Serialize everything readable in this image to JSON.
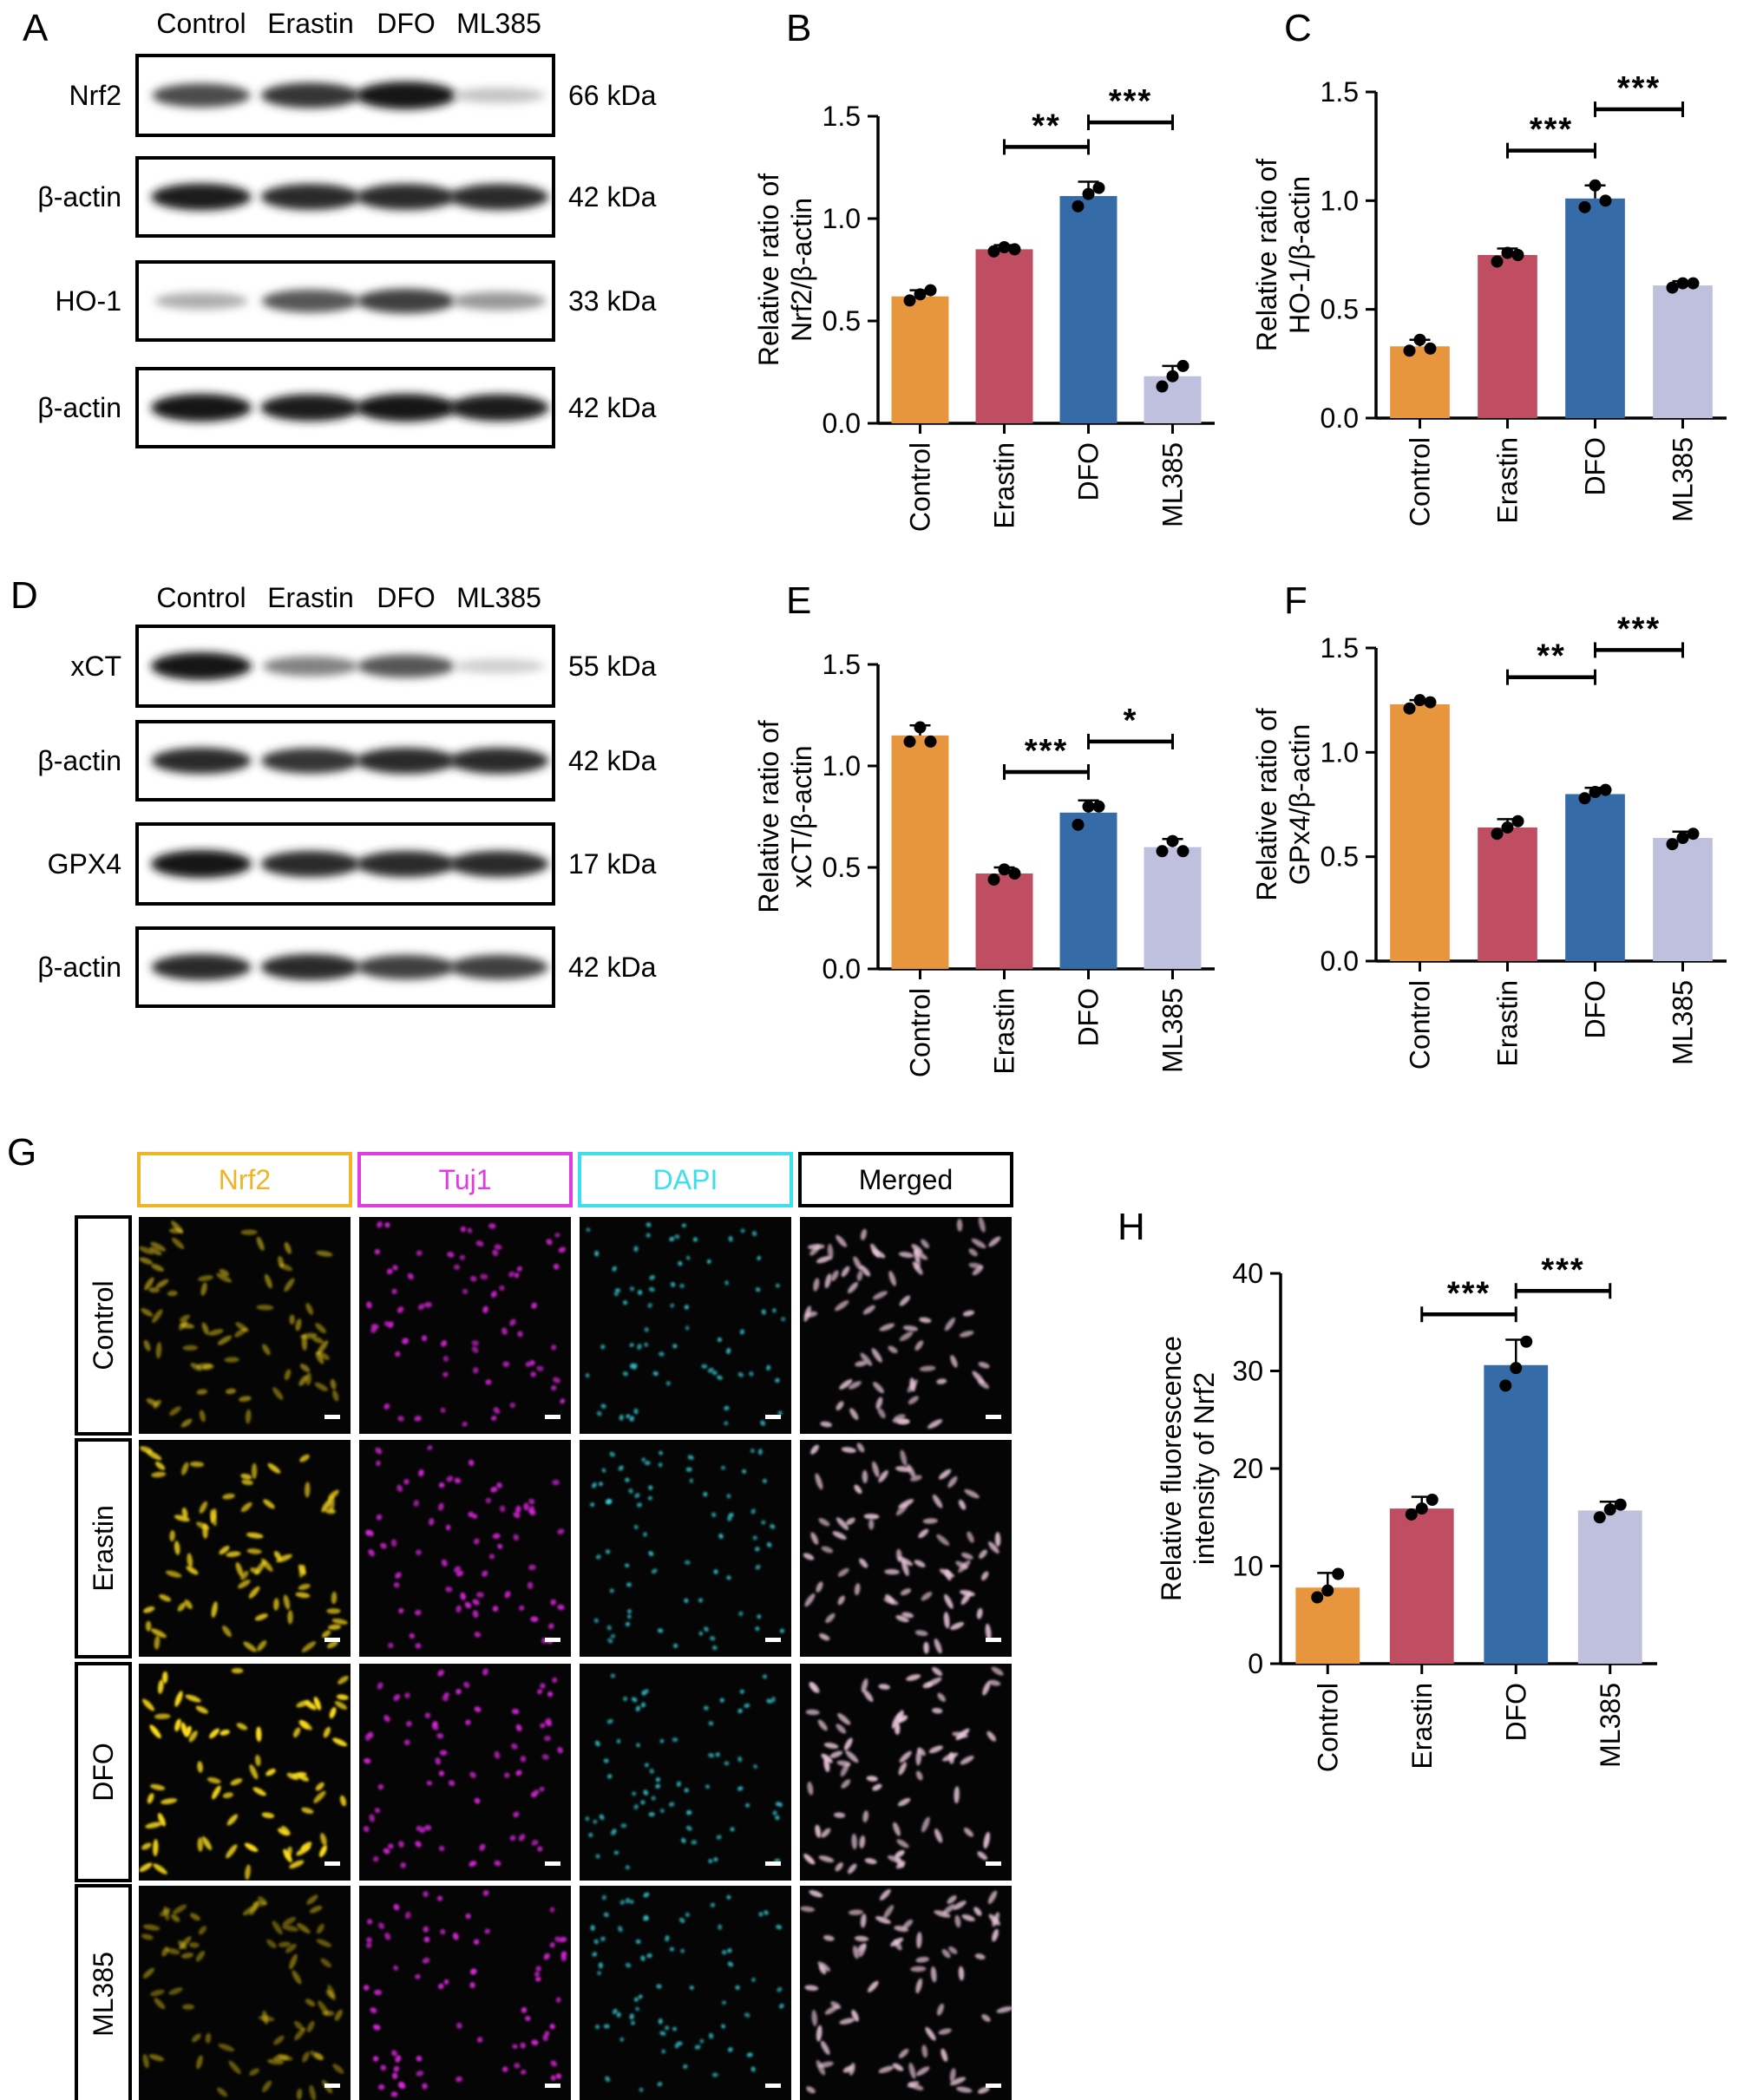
{
  "panel_letters": [
    "A",
    "B",
    "C",
    "D",
    "E",
    "F",
    "G",
    "H"
  ],
  "lane_labels": [
    "Control",
    "Erastin",
    "DFO",
    "ML385"
  ],
  "colors": {
    "Control": "#E8963D",
    "Erastin": "#C04E63",
    "DFO": "#356BA6",
    "ML385": "#BEC0DE",
    "nrf2_frame": "#F0B429",
    "tuj1_frame": "#E03CE0",
    "dapi_frame": "#3CE0EC",
    "merged_frame": "#000000"
  },
  "blots_A": [
    {
      "label": "Nrf2",
      "kda": "66 kDa",
      "intensity": [
        0.75,
        0.85,
        1.0,
        0.2
      ]
    },
    {
      "label": "β-actin",
      "kda": "42 kDa",
      "intensity": [
        0.95,
        0.9,
        0.9,
        0.9
      ]
    },
    {
      "label": "HO-1",
      "kda": "33 kDa",
      "intensity": [
        0.3,
        0.7,
        0.8,
        0.4
      ]
    },
    {
      "label": "β-actin",
      "kda": "42 kDa",
      "intensity": [
        1.0,
        0.95,
        1.0,
        0.95
      ]
    }
  ],
  "blots_D": [
    {
      "label": "xCT",
      "kda": "55 kDa",
      "intensity": [
        1.0,
        0.5,
        0.7,
        0.15
      ]
    },
    {
      "label": "β-actin",
      "kda": "42 kDa",
      "intensity": [
        0.9,
        0.85,
        0.9,
        0.9
      ]
    },
    {
      "label": "GPX4",
      "kda": "17 kDa",
      "intensity": [
        1.0,
        0.9,
        0.9,
        0.9
      ]
    },
    {
      "label": "β-actin",
      "kda": "42 kDa",
      "intensity": [
        0.9,
        0.9,
        0.8,
        0.8
      ]
    }
  ],
  "if_panel": {
    "channels": [
      "Nrf2",
      "Tuj1",
      "DAPI",
      "Merged"
    ],
    "rows": [
      "Control",
      "Erastin",
      "DFO",
      "ML385"
    ],
    "levels": {
      "Nrf2": [
        0.35,
        0.75,
        1.0,
        0.25
      ],
      "Tuj1": [
        0.8,
        0.85,
        0.85,
        0.9
      ],
      "DAPI": [
        0.7,
        0.7,
        0.7,
        0.7
      ],
      "Merged": [
        0.8,
        0.85,
        0.9,
        0.85
      ]
    }
  },
  "chart_data": [
    {
      "id": "B",
      "type": "bar",
      "categories": [
        "Control",
        "Erastin",
        "DFO",
        "ML385"
      ],
      "values": [
        0.62,
        0.85,
        1.11,
        0.23
      ],
      "errors": [
        0.03,
        0.02,
        0.07,
        0.05
      ],
      "points": [
        [
          0.6,
          0.63,
          0.65
        ],
        [
          0.84,
          0.86,
          0.85
        ],
        [
          1.06,
          1.12,
          1.15
        ],
        [
          0.18,
          0.23,
          0.28
        ]
      ],
      "ylabel": [
        "Relative ratio of",
        "Nrf2/β-actin"
      ],
      "ylim": [
        0,
        1.5
      ],
      "ticks": [
        "0.0",
        "0.5",
        "1.0",
        "1.5"
      ],
      "sig": [
        {
          "from": 1,
          "to": 2,
          "label": "**",
          "y": 1.35
        },
        {
          "from": 2,
          "to": 3,
          "label": "***",
          "y": 1.47
        }
      ]
    },
    {
      "id": "C",
      "type": "bar",
      "categories": [
        "Control",
        "Erastin",
        "DFO",
        "ML385"
      ],
      "values": [
        0.33,
        0.75,
        1.01,
        0.61
      ],
      "errors": [
        0.03,
        0.03,
        0.06,
        0.02
      ],
      "points": [
        [
          0.31,
          0.36,
          0.32
        ],
        [
          0.72,
          0.76,
          0.75
        ],
        [
          0.97,
          1.07,
          1.0
        ],
        [
          0.6,
          0.62,
          0.62
        ]
      ],
      "ylabel": [
        "Relative ratio of",
        "HO-1/β-actin"
      ],
      "ylim": [
        0,
        1.5
      ],
      "ticks": [
        "0.0",
        "0.5",
        "1.0",
        "1.5"
      ],
      "sig": [
        {
          "from": 1,
          "to": 2,
          "label": "***",
          "y": 1.23
        },
        {
          "from": 2,
          "to": 3,
          "label": "***",
          "y": 1.42
        }
      ]
    },
    {
      "id": "E",
      "type": "bar",
      "categories": [
        "Control",
        "Erastin",
        "DFO",
        "ML385"
      ],
      "values": [
        1.15,
        0.47,
        0.77,
        0.6
      ],
      "errors": [
        0.05,
        0.03,
        0.06,
        0.04
      ],
      "points": [
        [
          1.12,
          1.19,
          1.12
        ],
        [
          0.44,
          0.49,
          0.47
        ],
        [
          0.71,
          0.8,
          0.8
        ],
        [
          0.58,
          0.63,
          0.58
        ]
      ],
      "ylabel": [
        "Relative ratio of",
        "xCT/β-actin"
      ],
      "ylim": [
        0,
        1.5
      ],
      "ticks": [
        "0.0",
        "0.5",
        "1.0",
        "1.5"
      ],
      "sig": [
        {
          "from": 1,
          "to": 2,
          "label": "***",
          "y": 0.97
        },
        {
          "from": 2,
          "to": 3,
          "label": "*",
          "y": 1.12
        }
      ]
    },
    {
      "id": "F",
      "type": "bar",
      "categories": [
        "Control",
        "Erastin",
        "DFO",
        "ML385"
      ],
      "values": [
        1.23,
        0.64,
        0.8,
        0.59
      ],
      "errors": [
        0.02,
        0.04,
        0.03,
        0.03
      ],
      "points": [
        [
          1.21,
          1.25,
          1.24
        ],
        [
          0.61,
          0.64,
          0.67
        ],
        [
          0.78,
          0.81,
          0.82
        ],
        [
          0.56,
          0.59,
          0.61
        ]
      ],
      "ylabel": [
        "Relative ratio of",
        "GPx4/β-actin"
      ],
      "ylim": [
        0,
        1.5
      ],
      "ticks": [
        "0.0",
        "0.5",
        "1.0",
        "1.5"
      ],
      "sig": [
        {
          "from": 1,
          "to": 2,
          "label": "**",
          "y": 1.36
        },
        {
          "from": 2,
          "to": 3,
          "label": "***",
          "y": 1.49
        }
      ]
    },
    {
      "id": "H",
      "type": "bar",
      "categories": [
        "Control",
        "Erastin",
        "DFO",
        "ML385"
      ],
      "values": [
        7.8,
        15.9,
        30.6,
        15.7
      ],
      "errors": [
        1.5,
        1.2,
        2.6,
        0.9
      ],
      "points": [
        [
          6.8,
          7.5,
          9.2
        ],
        [
          15.3,
          15.9,
          16.8
        ],
        [
          28.5,
          30.3,
          33.0
        ],
        [
          15.0,
          15.8,
          16.3
        ]
      ],
      "ylabel": [
        "Relative fluorescence",
        "intensity of Nrf2"
      ],
      "ylim": [
        0,
        40
      ],
      "ticks": [
        "0",
        "10",
        "20",
        "30",
        "40"
      ],
      "sig": [
        {
          "from": 1,
          "to": 2,
          "label": "***",
          "y": 35.8
        },
        {
          "from": 2,
          "to": 3,
          "label": "***",
          "y": 38.2
        }
      ]
    }
  ]
}
